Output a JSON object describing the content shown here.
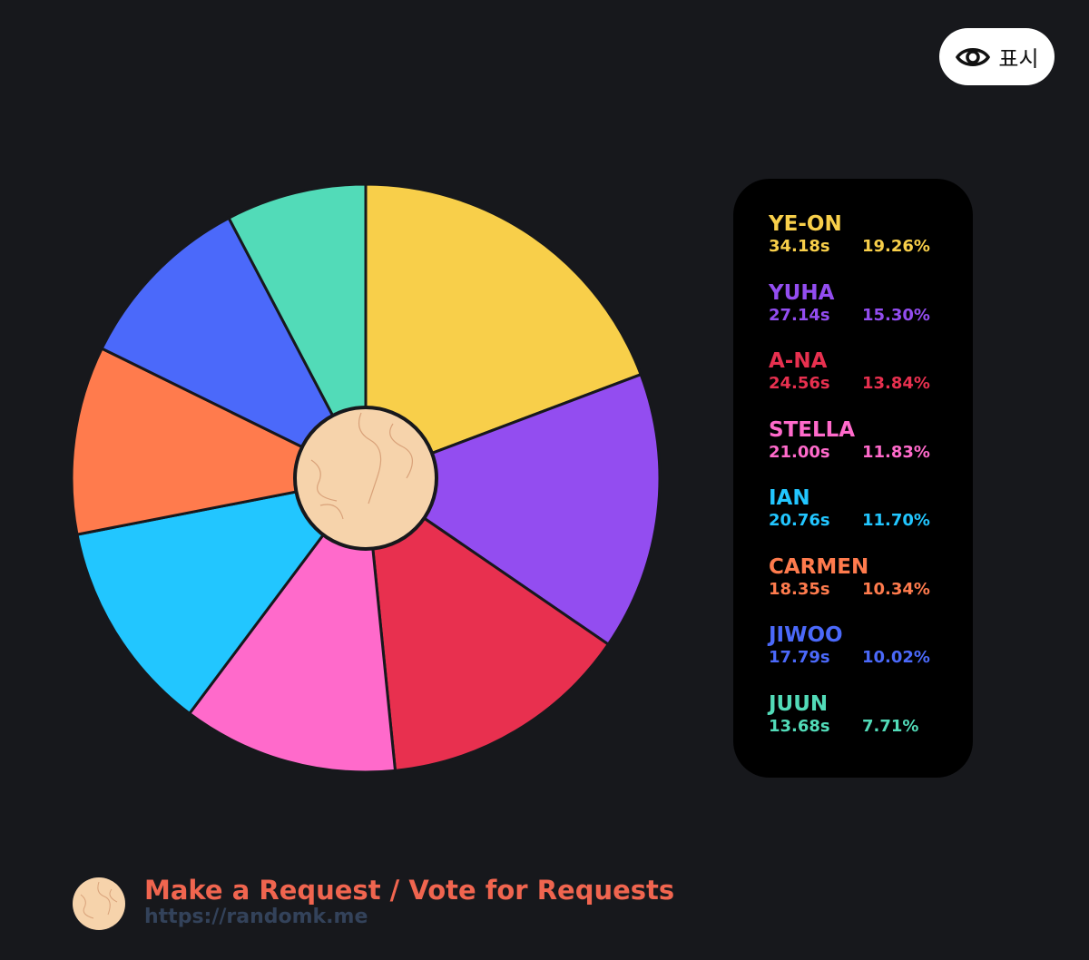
{
  "show_button": {
    "label": "표시",
    "icon": "eye-icon"
  },
  "chart_data": {
    "type": "pie",
    "start_angle": "top",
    "direction": "clockwise",
    "slices": [
      {
        "name": "YE-ON",
        "time": "34.18s",
        "percent": 19.26,
        "percent_label": "19.26%",
        "color": "#F8CF4A"
      },
      {
        "name": "YUHA",
        "time": "27.14s",
        "percent": 15.3,
        "percent_label": "15.30%",
        "color": "#934DF0"
      },
      {
        "name": "A-NA",
        "time": "24.56s",
        "percent": 13.84,
        "percent_label": "13.84%",
        "color": "#E8304F"
      },
      {
        "name": "STELLA",
        "time": "21.00s",
        "percent": 11.83,
        "percent_label": "11.83%",
        "color": "#FF6ACB"
      },
      {
        "name": "IAN",
        "time": "20.76s",
        "percent": 11.7,
        "percent_label": "11.70%",
        "color": "#22C6FF"
      },
      {
        "name": "CARMEN",
        "time": "18.35s",
        "percent": 10.34,
        "percent_label": "10.34%",
        "color": "#FF7B4D"
      },
      {
        "name": "JIWOO",
        "time": "17.79s",
        "percent": 10.02,
        "percent_label": "10.02%",
        "color": "#4B69FA"
      },
      {
        "name": "JUUN",
        "time": "13.68s",
        "percent": 7.71,
        "percent_label": "7.71%",
        "color": "#52DBB8"
      }
    ],
    "legend_placement": "right"
  },
  "footer": {
    "title": "Make a Request / Vote for Requests",
    "url": "https://randomk.me"
  }
}
